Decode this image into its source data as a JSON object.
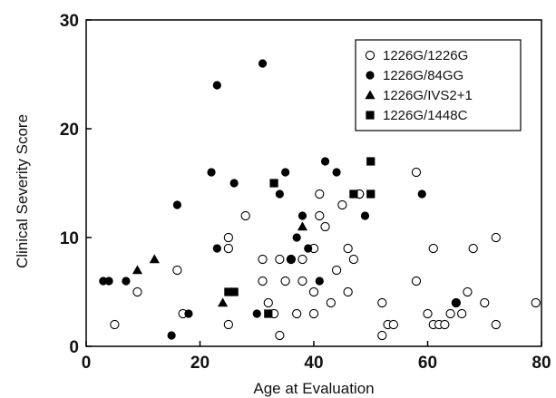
{
  "chart_data": {
    "type": "scatter",
    "title": "",
    "xlabel": "Age at Evaluation",
    "ylabel": "Clinical Severity Score",
    "xlim": [
      0,
      80
    ],
    "ylim": [
      0,
      30
    ],
    "xticks": [
      0,
      20,
      40,
      60,
      80
    ],
    "yticks": [
      0,
      10,
      20,
      30
    ],
    "grid": false,
    "legend_position": "top-right",
    "series": [
      {
        "name": "1226G/1226G",
        "marker": "open-circle",
        "color": "#000000",
        "x": [
          5,
          9,
          16,
          17,
          25,
          25,
          25,
          28,
          31,
          31,
          32,
          33,
          34,
          34,
          35,
          36,
          37,
          38,
          38,
          40,
          40,
          40,
          41,
          41,
          42,
          43,
          44,
          45,
          46,
          46,
          47,
          48,
          48,
          52,
          52,
          53,
          54,
          58,
          58,
          60,
          61,
          61,
          62,
          63,
          64,
          65,
          66,
          67,
          68,
          70,
          72,
          72,
          79
        ],
        "y": [
          2,
          5,
          7,
          3,
          2,
          9,
          10,
          12,
          6,
          8,
          4,
          3,
          1,
          8,
          6,
          8,
          3,
          6,
          8,
          3,
          5,
          9,
          12,
          14,
          11,
          4,
          7,
          13,
          5,
          9,
          8,
          14,
          14,
          1,
          4,
          2,
          2,
          6,
          16,
          3,
          2,
          9,
          2,
          2,
          3,
          4,
          3,
          5,
          9,
          4,
          2,
          10,
          4
        ]
      },
      {
        "name": "1226G/84GG",
        "marker": "filled-circle",
        "color": "#000000",
        "x": [
          3,
          4,
          7,
          15,
          16,
          18,
          22,
          23,
          23,
          26,
          30,
          31,
          34,
          35,
          36,
          37,
          38,
          39,
          41,
          42,
          44,
          49,
          59,
          65
        ],
        "y": [
          6,
          6,
          6,
          1,
          13,
          3,
          16,
          9,
          24,
          15,
          3,
          26,
          14,
          16,
          8,
          10,
          12,
          9,
          6,
          17,
          16,
          12,
          14,
          4
        ]
      },
      {
        "name": "1226G/IVS2+1",
        "marker": "filled-triangle",
        "color": "#000000",
        "x": [
          9,
          12,
          24,
          38
        ],
        "y": [
          7,
          8,
          4,
          11
        ]
      },
      {
        "name": "1226G/1448C",
        "marker": "filled-square",
        "color": "#000000",
        "x": [
          25,
          26,
          32,
          33,
          47,
          50,
          50
        ],
        "y": [
          5,
          5,
          3,
          15,
          14,
          14,
          17
        ]
      }
    ]
  }
}
